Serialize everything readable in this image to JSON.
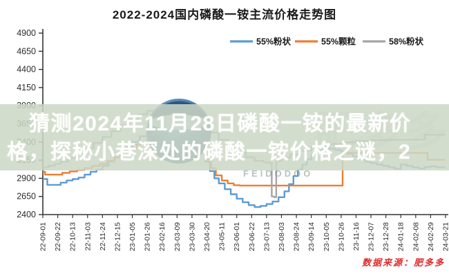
{
  "title": "2022-2024国内磷酸一铵主流价格走势图",
  "banner": {
    "line1": "猜测2024年11月28日磷酸一铵的最新价",
    "line2": "格，探秘小巷深处的磷酸一铵价格之谜，2"
  },
  "source": "数据来源：肥多多",
  "watermark": {
    "latin": "FEIDODOO",
    "cjk": "肥多多"
  },
  "colors": {
    "banner_bg": "rgba(204,215,197,0.86)",
    "banner_text": "#ffffff",
    "source_red": "#e02a2a",
    "axis": "#333333"
  },
  "chart_data": {
    "type": "line",
    "title": "2022-2024国内磷酸一铵主流价格走势图",
    "xlabel": "",
    "ylabel": "",
    "ylim": [
      2400,
      4900
    ],
    "y_ticks": [
      2400,
      2650,
      2900,
      3150,
      3400,
      3650,
      3900,
      4150,
      4400,
      4650,
      4900
    ],
    "grid": false,
    "legend_position": "top-right",
    "categories": [
      "22-09-01",
      "22-09-22",
      "22-10-13",
      "22-11-03",
      "22-11-24",
      "22-12-15",
      "23-01-05",
      "23-01-26",
      "23-02-16",
      "23-03-09",
      "23-03-30",
      "23-04-20",
      "23-05-11",
      "23-06-01",
      "23-06-22",
      "23-07-13",
      "23-08-03",
      "23-08-24",
      "23-09-14",
      "23-10-05",
      "23-10-26",
      "23-11-16",
      "23-12-07",
      "23-12-28",
      "24-01-18",
      "24-02-08",
      "24-02-29",
      "24-03-21"
    ],
    "x_note": "series points are [tick_index, price_yuan_per_ton]; ticks spaced 21 days; mid-range values partially hidden by overlay banner are estimates",
    "series": [
      {
        "name": "55%粉状",
        "color": "#5B9BD5",
        "points": [
          [
            0,
            2890
          ],
          [
            0.3,
            2810
          ],
          [
            0.8,
            2810
          ],
          [
            1.2,
            2840
          ],
          [
            1.6,
            2870
          ],
          [
            2,
            2890
          ],
          [
            2.4,
            2910
          ],
          [
            2.8,
            2950
          ],
          [
            3.2,
            2990
          ],
          [
            3.6,
            3020
          ],
          [
            4,
            3070
          ],
          [
            4.4,
            3130
          ],
          [
            4.8,
            3190
          ],
          [
            5.2,
            3260
          ],
          [
            5.6,
            3330
          ],
          [
            6,
            3400
          ],
          [
            6.5,
            3480
          ],
          [
            7,
            3550
          ],
          [
            7.5,
            3600
          ],
          [
            8,
            3640
          ],
          [
            8.5,
            3650
          ],
          [
            9,
            3630
          ],
          [
            9.5,
            3570
          ],
          [
            10,
            3480
          ],
          [
            10.3,
            3380
          ],
          [
            10.6,
            3260
          ],
          [
            10.9,
            3130
          ],
          [
            11.2,
            3000
          ],
          [
            11.5,
            2900
          ],
          [
            11.8,
            2830
          ],
          [
            12.2,
            2750
          ],
          [
            12.6,
            2680
          ],
          [
            13,
            2620
          ],
          [
            13.4,
            2570
          ],
          [
            13.8,
            2530
          ],
          [
            14.2,
            2505
          ],
          [
            14.6,
            2520
          ],
          [
            15,
            2545
          ],
          [
            15.4,
            2580
          ],
          [
            15.8,
            2640
          ],
          [
            16.2,
            2720
          ],
          [
            16.5,
            2820
          ],
          [
            16.8,
            2930
          ],
          [
            17.1,
            3020
          ],
          [
            17.4,
            3090
          ],
          [
            17.7,
            3160
          ],
          [
            18,
            3230
          ],
          [
            18.4,
            3290
          ],
          [
            18.8,
            3320
          ],
          [
            19.2,
            3310
          ],
          [
            19.6,
            3290
          ],
          [
            20,
            3270
          ],
          [
            20.4,
            3240
          ],
          [
            20.8,
            3200
          ],
          [
            21.2,
            3160
          ],
          [
            21.6,
            3130
          ],
          [
            22,
            3110
          ],
          [
            22.4,
            3090
          ],
          [
            22.8,
            3070
          ],
          [
            23.2,
            3050
          ],
          [
            23.6,
            3030
          ],
          [
            24,
            3090
          ],
          [
            24.4,
            3070
          ],
          [
            24.8,
            3050
          ],
          [
            25.2,
            3035
          ],
          [
            25.6,
            3055
          ],
          [
            26,
            3065
          ],
          [
            26.4,
            3050
          ],
          [
            27,
            3050
          ]
        ]
      },
      {
        "name": "55%颗粒",
        "color": "#ED7D31",
        "points": [
          [
            0,
            2990
          ],
          [
            0.15,
            2950
          ],
          [
            0.9,
            2950
          ],
          [
            1.3,
            2975
          ],
          [
            1.8,
            2995
          ],
          [
            2.3,
            3015
          ],
          [
            2.8,
            3040
          ],
          [
            3.3,
            3070
          ],
          [
            3.8,
            3100
          ],
          [
            4.3,
            3140
          ],
          [
            4.8,
            3190
          ],
          [
            5.3,
            3250
          ],
          [
            5.8,
            3310
          ],
          [
            6.3,
            3370
          ],
          [
            7,
            3440
          ],
          [
            7.6,
            3490
          ],
          [
            8.2,
            3510
          ],
          [
            8.8,
            3490
          ],
          [
            9.4,
            3440
          ],
          [
            10,
            3370
          ],
          [
            10.5,
            3280
          ],
          [
            11,
            3160
          ],
          [
            11.3,
            3040
          ],
          [
            11.6,
            2940
          ],
          [
            12,
            2870
          ],
          [
            12.4,
            2830
          ],
          [
            12.8,
            2805
          ],
          [
            13.2,
            2800
          ],
          [
            20.1,
            2800
          ],
          [
            20.1,
            3250
          ],
          [
            25.8,
            3250
          ],
          [
            25.8,
            3155
          ],
          [
            27,
            3155
          ]
        ]
      },
      {
        "name": "58%粉状",
        "color": "#A5A5A5",
        "points": [
          [
            0,
            3050
          ],
          [
            0.4,
            3075
          ],
          [
            0.8,
            3100
          ],
          [
            1.2,
            3130
          ],
          [
            1.7,
            3180
          ],
          [
            2.2,
            3240
          ],
          [
            2.8,
            3310
          ],
          [
            3.4,
            3390
          ],
          [
            4,
            3470
          ],
          [
            4.6,
            3550
          ],
          [
            5.2,
            3630
          ],
          [
            5.8,
            3710
          ],
          [
            6.4,
            3780
          ],
          [
            7,
            3830
          ],
          [
            7.6,
            3860
          ],
          [
            8.2,
            3870
          ],
          [
            8.8,
            3840
          ],
          [
            9.4,
            3790
          ],
          [
            10,
            3720
          ],
          [
            10.6,
            3630
          ],
          [
            11.2,
            3530
          ],
          [
            11.8,
            3430
          ],
          [
            12.4,
            3340
          ],
          [
            13,
            3260
          ],
          [
            13.6,
            3190
          ],
          [
            14.2,
            3140
          ],
          [
            14.8,
            3120
          ],
          [
            15.2,
            3110
          ],
          [
            15.35,
            2650
          ],
          [
            15.5,
            2640
          ],
          [
            15.65,
            3140
          ],
          [
            16,
            3180
          ],
          [
            16.6,
            3230
          ],
          [
            17.2,
            3280
          ],
          [
            18,
            3330
          ],
          [
            19,
            3370
          ],
          [
            20,
            3395
          ],
          [
            21,
            3415
          ],
          [
            22,
            3425
          ],
          [
            23,
            3430
          ],
          [
            25.6,
            3430
          ],
          [
            25.6,
            3500
          ],
          [
            27,
            3500
          ]
        ]
      }
    ]
  }
}
